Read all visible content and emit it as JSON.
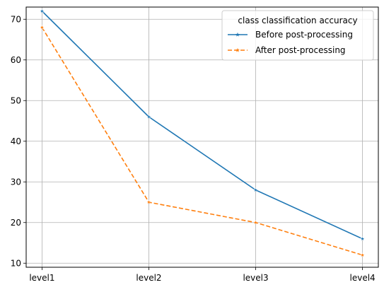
{
  "chart_data": {
    "type": "line",
    "title": "",
    "xlabel": "",
    "ylabel": "",
    "categories": [
      "level1",
      "level2",
      "level3",
      "level4"
    ],
    "ylim": [
      9,
      73
    ],
    "yticks": [
      10,
      20,
      30,
      40,
      50,
      60,
      70
    ],
    "grid": true,
    "legend": {
      "title": "class classification accuracy",
      "placement": "top-right"
    },
    "series": [
      {
        "name": "Before post-processing",
        "values": [
          72,
          46,
          28,
          16
        ],
        "color": "#1f77b4",
        "linestyle": "solid",
        "marker": "star"
      },
      {
        "name": "After post-processing",
        "values": [
          68,
          25,
          20,
          12
        ],
        "color": "#ff7f0e",
        "linestyle": "dashed",
        "marker": "star"
      }
    ]
  }
}
